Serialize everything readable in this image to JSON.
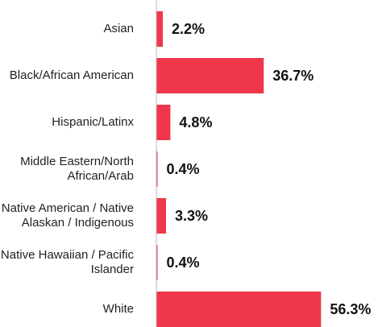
{
  "chart_data": {
    "type": "bar",
    "orientation": "horizontal",
    "categories": [
      "Asian",
      "Black/African American",
      "Hispanic/Latinx",
      "Middle Eastern/North African/Arab",
      "Native American / Native Alaskan / Indigenous",
      "Native Hawaiian / Pacific Islander",
      "White"
    ],
    "values": [
      2.2,
      36.7,
      4.8,
      0.4,
      3.3,
      0.4,
      56.3
    ],
    "value_labels": [
      "2.2%",
      "36.7%",
      "4.8%",
      "0.4%",
      "3.3%",
      "0.4%",
      "56.3%"
    ],
    "color": "#f0364a"
  }
}
